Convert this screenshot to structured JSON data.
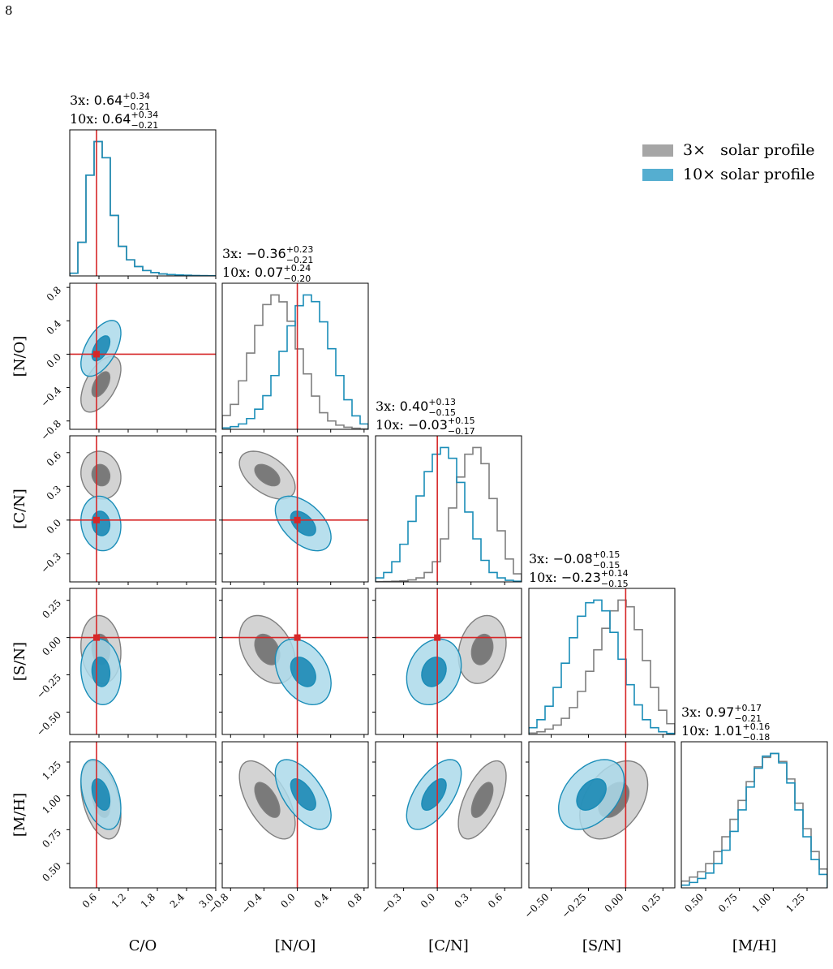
{
  "page_number": "8",
  "colors": {
    "grey_line": "#7f7f7f",
    "grey_fill_outer": "#d3d3d3",
    "grey_fill_inner": "#7a7a7a",
    "blue_line": "#1a8db8",
    "blue_fill_outer": "#acd9ea",
    "blue_fill_inner": "#1385b2",
    "truth": "#d62728"
  },
  "legend": {
    "items": [
      {
        "label": "3×   solar profile",
        "color": "#a6a6a6"
      },
      {
        "label": "10× solar profile",
        "color": "#55aed0"
      }
    ]
  },
  "chart_data": {
    "type": "corner",
    "parameters": [
      "C/O",
      "[N/O]",
      "[C/N]",
      "[S/N]",
      "[M/H]"
    ],
    "ranges": [
      [
        0.0,
        3.0
      ],
      [
        -0.9,
        0.85
      ],
      [
        -0.55,
        0.75
      ],
      [
        -0.65,
        0.33
      ],
      [
        0.32,
        1.4
      ]
    ],
    "ticks": [
      [
        "0.6",
        "1.2",
        "1.8",
        "2.4",
        "3.0"
      ],
      [
        "−0.8",
        "−0.4",
        "0.0",
        "0.4",
        "0.8"
      ],
      [
        "−0.3",
        "0.0",
        "0.3",
        "0.6"
      ],
      [
        "−0.50",
        "−0.25",
        "0.00",
        "0.25"
      ],
      [
        "0.50",
        "0.75",
        "1.00",
        "1.25"
      ]
    ],
    "truths": [
      0.55,
      0.0,
      0.0,
      0.0,
      null
    ],
    "titles": [
      {
        "row1": {
          "prefix": "3x:   ",
          "value": "0.64",
          "sup": "+0.34",
          "sub": "−0.21"
        },
        "row2": {
          "prefix": "10x: ",
          "value": "0.64",
          "sup": "+0.34",
          "sub": "−0.21"
        }
      },
      {
        "row1": {
          "prefix": "3x:   ",
          "value": "−0.36",
          "sup": "+0.23",
          "sub": "−0.21"
        },
        "row2": {
          "prefix": "10x: ",
          "value": "0.07",
          "sup": "+0.24",
          "sub": "−0.20"
        }
      },
      {
        "row1": {
          "prefix": "3x:   ",
          "value": "0.40",
          "sup": "+0.13",
          "sub": "−0.15"
        },
        "row2": {
          "prefix": "10x: ",
          "value": "−0.03",
          "sup": "+0.15",
          "sub": "−0.17"
        }
      },
      {
        "row1": {
          "prefix": "3x:   ",
          "value": "−0.08",
          "sup": "+0.15",
          "sub": "−0.15"
        },
        "row2": {
          "prefix": "10x: ",
          "value": "−0.23",
          "sup": "+0.14",
          "sub": "−0.15"
        }
      },
      {
        "row1": {
          "prefix": "3x:   ",
          "value": "0.97",
          "sup": "+0.17",
          "sub": "−0.21"
        },
        "row2": {
          "prefix": "10x: ",
          "value": "1.01",
          "sup": "+0.16",
          "sub": "−0.18"
        }
      }
    ],
    "series": [
      {
        "name": "3×   solar profile",
        "medians": [
          0.64,
          -0.36,
          0.4,
          -0.08,
          0.97
        ],
        "sigmas": [
          0.27,
          0.22,
          0.14,
          0.15,
          0.19
        ],
        "correlations": [
          [
            1.0,
            0.55,
            -0.1,
            -0.1,
            -0.4
          ],
          [
            0.55,
            1.0,
            -0.5,
            -0.35,
            -0.6
          ],
          [
            -0.1,
            -0.5,
            1.0,
            0.2,
            0.6
          ],
          [
            -0.1,
            -0.35,
            0.2,
            1.0,
            0.4
          ],
          [
            -0.4,
            -0.6,
            0.6,
            0.4,
            1.0
          ]
        ],
        "histograms": [
          [
            0.02,
            0.25,
            0.75,
            1.0,
            0.88,
            0.45,
            0.22,
            0.12,
            0.07,
            0.04,
            0.025,
            0.015,
            0.01,
            0.007,
            0.005,
            0.003,
            0.002,
            0.001
          ],
          [
            0.1,
            0.18,
            0.35,
            0.55,
            0.75,
            0.9,
            0.97,
            0.92,
            0.78,
            0.58,
            0.4,
            0.24,
            0.12,
            0.06,
            0.03,
            0.015,
            0.008,
            0.003
          ],
          [
            0.002,
            0.003,
            0.005,
            0.008,
            0.015,
            0.03,
            0.07,
            0.15,
            0.32,
            0.55,
            0.78,
            0.95,
            1.0,
            0.88,
            0.62,
            0.38,
            0.17,
            0.06
          ],
          [
            0.01,
            0.02,
            0.04,
            0.07,
            0.12,
            0.2,
            0.32,
            0.47,
            0.63,
            0.79,
            0.92,
            1.0,
            0.95,
            0.78,
            0.55,
            0.35,
            0.18,
            0.08
          ],
          [
            0.05,
            0.08,
            0.12,
            0.18,
            0.27,
            0.38,
            0.51,
            0.65,
            0.79,
            0.9,
            0.97,
            1.0,
            0.94,
            0.81,
            0.63,
            0.44,
            0.27,
            0.14
          ]
        ]
      },
      {
        "name": "10× solar profile",
        "medians": [
          0.64,
          0.07,
          -0.03,
          -0.23,
          1.01
        ],
        "sigmas": [
          0.27,
          0.22,
          0.16,
          0.145,
          0.17
        ],
        "correlations": [
          [
            1.0,
            0.55,
            -0.1,
            -0.1,
            -0.4
          ],
          [
            0.55,
            1.0,
            -0.5,
            -0.35,
            -0.6
          ],
          [
            -0.1,
            -0.5,
            1.0,
            0.2,
            0.6
          ],
          [
            -0.1,
            -0.35,
            0.2,
            1.0,
            0.4
          ],
          [
            -0.4,
            -0.6,
            0.6,
            0.4,
            1.0
          ]
        ],
        "histograms": [
          [
            0.02,
            0.25,
            0.75,
            1.0,
            0.88,
            0.45,
            0.22,
            0.12,
            0.07,
            0.04,
            0.025,
            0.015,
            0.01,
            0.007,
            0.005,
            0.003,
            0.002,
            0.001
          ],
          [
            0.01,
            0.02,
            0.04,
            0.08,
            0.15,
            0.25,
            0.4,
            0.58,
            0.77,
            0.92,
            1.0,
            0.95,
            0.8,
            0.6,
            0.4,
            0.22,
            0.1,
            0.04
          ],
          [
            0.03,
            0.07,
            0.15,
            0.28,
            0.45,
            0.64,
            0.82,
            0.95,
            1.0,
            0.92,
            0.74,
            0.52,
            0.32,
            0.16,
            0.07,
            0.03,
            0.012,
            0.005
          ],
          [
            0.05,
            0.11,
            0.21,
            0.35,
            0.53,
            0.72,
            0.88,
            0.98,
            1.0,
            0.92,
            0.76,
            0.56,
            0.37,
            0.22,
            0.11,
            0.05,
            0.02,
            0.008
          ],
          [
            0.02,
            0.04,
            0.07,
            0.11,
            0.18,
            0.28,
            0.42,
            0.58,
            0.75,
            0.89,
            0.98,
            1.0,
            0.93,
            0.78,
            0.58,
            0.38,
            0.21,
            0.1
          ]
        ]
      }
    ]
  }
}
